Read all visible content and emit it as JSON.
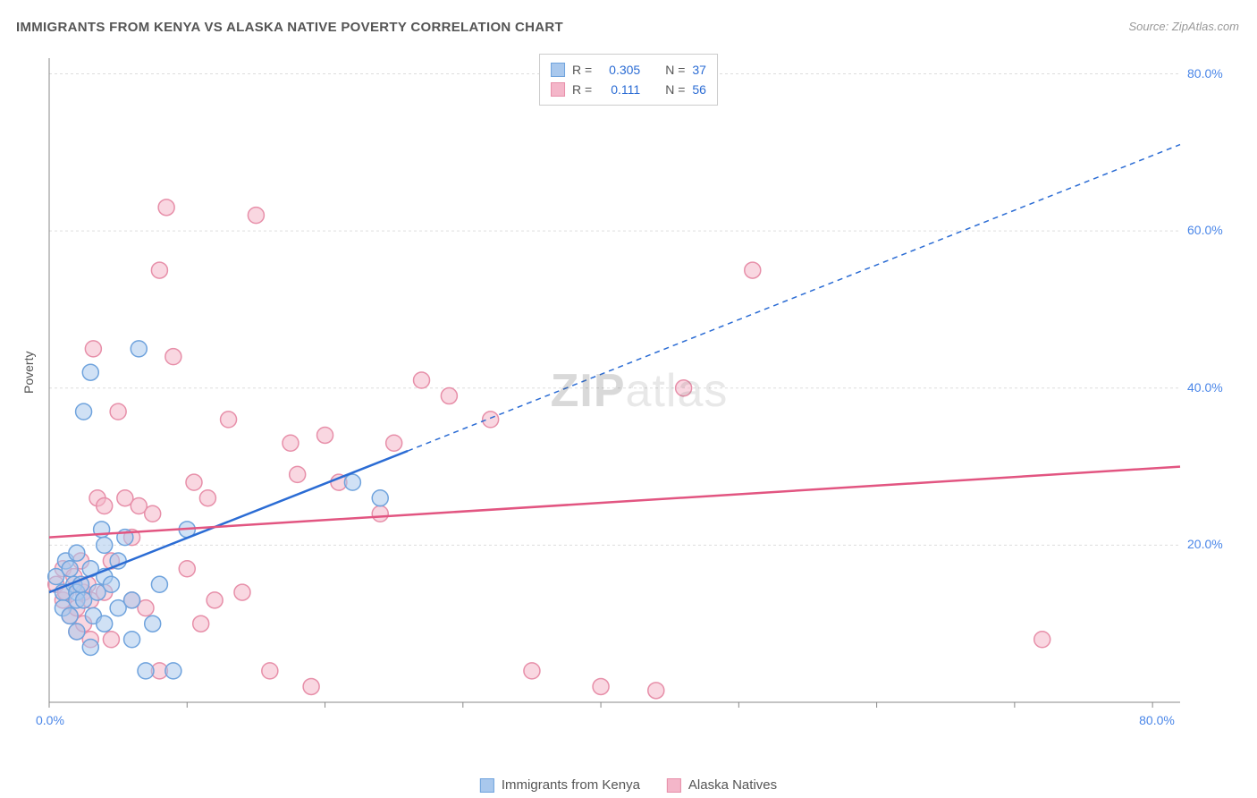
{
  "title": "IMMIGRANTS FROM KENYA VS ALASKA NATIVE POVERTY CORRELATION CHART",
  "source": "Source: ZipAtlas.com",
  "watermark_bold": "ZIP",
  "watermark_light": "atlas",
  "ylabel": "Poverty",
  "chart": {
    "type": "scatter",
    "xlim": [
      0,
      82
    ],
    "ylim": [
      0,
      82
    ],
    "x_ticks": [
      0,
      10,
      20,
      30,
      40,
      50,
      60,
      70,
      80
    ],
    "y_ticks": [
      20,
      40,
      60,
      80
    ],
    "x_tick_labels_shown": {
      "0": "0.0%",
      "80": "80.0%"
    },
    "y_tick_labels_shown": {
      "20": "20.0%",
      "40": "40.0%",
      "60": "60.0%",
      "80": "80.0%"
    },
    "grid_color": "#dddddd",
    "background_color": "#ffffff",
    "axis_color": "#888888",
    "tick_label_color": "#4a86e8",
    "series": [
      {
        "name": "Immigrants from Kenya",
        "color_fill": "#a9c8ed",
        "color_stroke": "#6fa3dd",
        "marker_radius": 9,
        "fill_opacity": 0.55,
        "R": 0.305,
        "N": 37,
        "trend_solid": {
          "x1": 0,
          "y1": 14,
          "x2": 26,
          "y2": 32
        },
        "trend_dashed": {
          "x1": 26,
          "y1": 32,
          "x2": 82,
          "y2": 71
        },
        "trend_color": "#2b6cd4",
        "trend_width": 2.5,
        "points": [
          [
            0.5,
            16
          ],
          [
            1,
            14
          ],
          [
            1,
            12
          ],
          [
            1.2,
            18
          ],
          [
            1.5,
            17
          ],
          [
            1.5,
            11
          ],
          [
            1.8,
            15
          ],
          [
            2,
            14
          ],
          [
            2,
            13
          ],
          [
            2,
            19
          ],
          [
            2,
            9
          ],
          [
            2.3,
            15
          ],
          [
            2.5,
            13
          ],
          [
            2.5,
            37
          ],
          [
            3,
            17
          ],
          [
            3,
            42
          ],
          [
            3.2,
            11
          ],
          [
            3.5,
            14
          ],
          [
            3.8,
            22
          ],
          [
            4,
            16
          ],
          [
            4,
            20
          ],
          [
            4,
            10
          ],
          [
            4.5,
            15
          ],
          [
            5,
            12
          ],
          [
            5,
            18
          ],
          [
            5.5,
            21
          ],
          [
            6,
            13
          ],
          [
            6.5,
            45
          ],
          [
            7,
            4
          ],
          [
            7.5,
            10
          ],
          [
            8,
            15
          ],
          [
            9,
            4
          ],
          [
            10,
            22
          ],
          [
            22,
            28
          ],
          [
            24,
            26
          ],
          [
            3,
            7
          ],
          [
            6,
            8
          ]
        ]
      },
      {
        "name": "Alaska Natives",
        "color_fill": "#f4b6c9",
        "color_stroke": "#e78fa9",
        "marker_radius": 9,
        "fill_opacity": 0.55,
        "R": 0.111,
        "N": 56,
        "trend_solid": {
          "x1": 0,
          "y1": 21,
          "x2": 82,
          "y2": 30
        },
        "trend_color": "#e25581",
        "trend_width": 2.5,
        "points": [
          [
            0.5,
            15
          ],
          [
            1,
            13
          ],
          [
            1,
            17
          ],
          [
            1.2,
            14
          ],
          [
            1.5,
            11
          ],
          [
            1.8,
            16
          ],
          [
            2,
            12
          ],
          [
            2,
            9
          ],
          [
            2.3,
            18
          ],
          [
            2.5,
            14
          ],
          [
            2.5,
            10
          ],
          [
            2.8,
            15
          ],
          [
            3,
            8
          ],
          [
            3,
            13
          ],
          [
            3.2,
            45
          ],
          [
            3.5,
            26
          ],
          [
            4,
            14
          ],
          [
            4,
            25
          ],
          [
            4.5,
            18
          ],
          [
            5,
            37
          ],
          [
            5.5,
            26
          ],
          [
            6,
            13
          ],
          [
            6,
            21
          ],
          [
            6.5,
            25
          ],
          [
            7,
            12
          ],
          [
            7.5,
            24
          ],
          [
            8,
            4
          ],
          [
            8,
            55
          ],
          [
            8.5,
            63
          ],
          [
            9,
            44
          ],
          [
            10,
            17
          ],
          [
            10.5,
            28
          ],
          [
            11,
            10
          ],
          [
            11.5,
            26
          ],
          [
            12,
            13
          ],
          [
            13,
            36
          ],
          [
            14,
            14
          ],
          [
            15,
            62
          ],
          [
            16,
            4
          ],
          [
            17.5,
            33
          ],
          [
            18,
            29
          ],
          [
            19,
            2
          ],
          [
            20,
            34
          ],
          [
            21,
            28
          ],
          [
            24,
            24
          ],
          [
            25,
            33
          ],
          [
            27,
            41
          ],
          [
            29,
            39
          ],
          [
            32,
            36
          ],
          [
            35,
            4
          ],
          [
            40,
            2
          ],
          [
            44,
            1.5
          ],
          [
            46,
            40
          ],
          [
            51,
            55
          ],
          [
            72,
            8
          ],
          [
            4.5,
            8
          ]
        ]
      }
    ]
  },
  "legend_top": {
    "border_color": "#cccccc",
    "rows": [
      {
        "swatch_fill": "#a9c8ed",
        "swatch_stroke": "#6fa3dd",
        "r_label": "R =",
        "r_val": "0.305",
        "n_label": "N =",
        "n_val": "37"
      },
      {
        "swatch_fill": "#f4b6c9",
        "swatch_stroke": "#e78fa9",
        "r_label": "R =",
        "r_val": "0.111",
        "n_label": "N =",
        "n_val": "56"
      }
    ],
    "label_color": "#555555",
    "value_color": "#2b6cd4"
  },
  "legend_bottom": [
    {
      "swatch_fill": "#a9c8ed",
      "swatch_stroke": "#6fa3dd",
      "label": "Immigrants from Kenya"
    },
    {
      "swatch_fill": "#f4b6c9",
      "swatch_stroke": "#e78fa9",
      "label": "Alaska Natives"
    }
  ]
}
